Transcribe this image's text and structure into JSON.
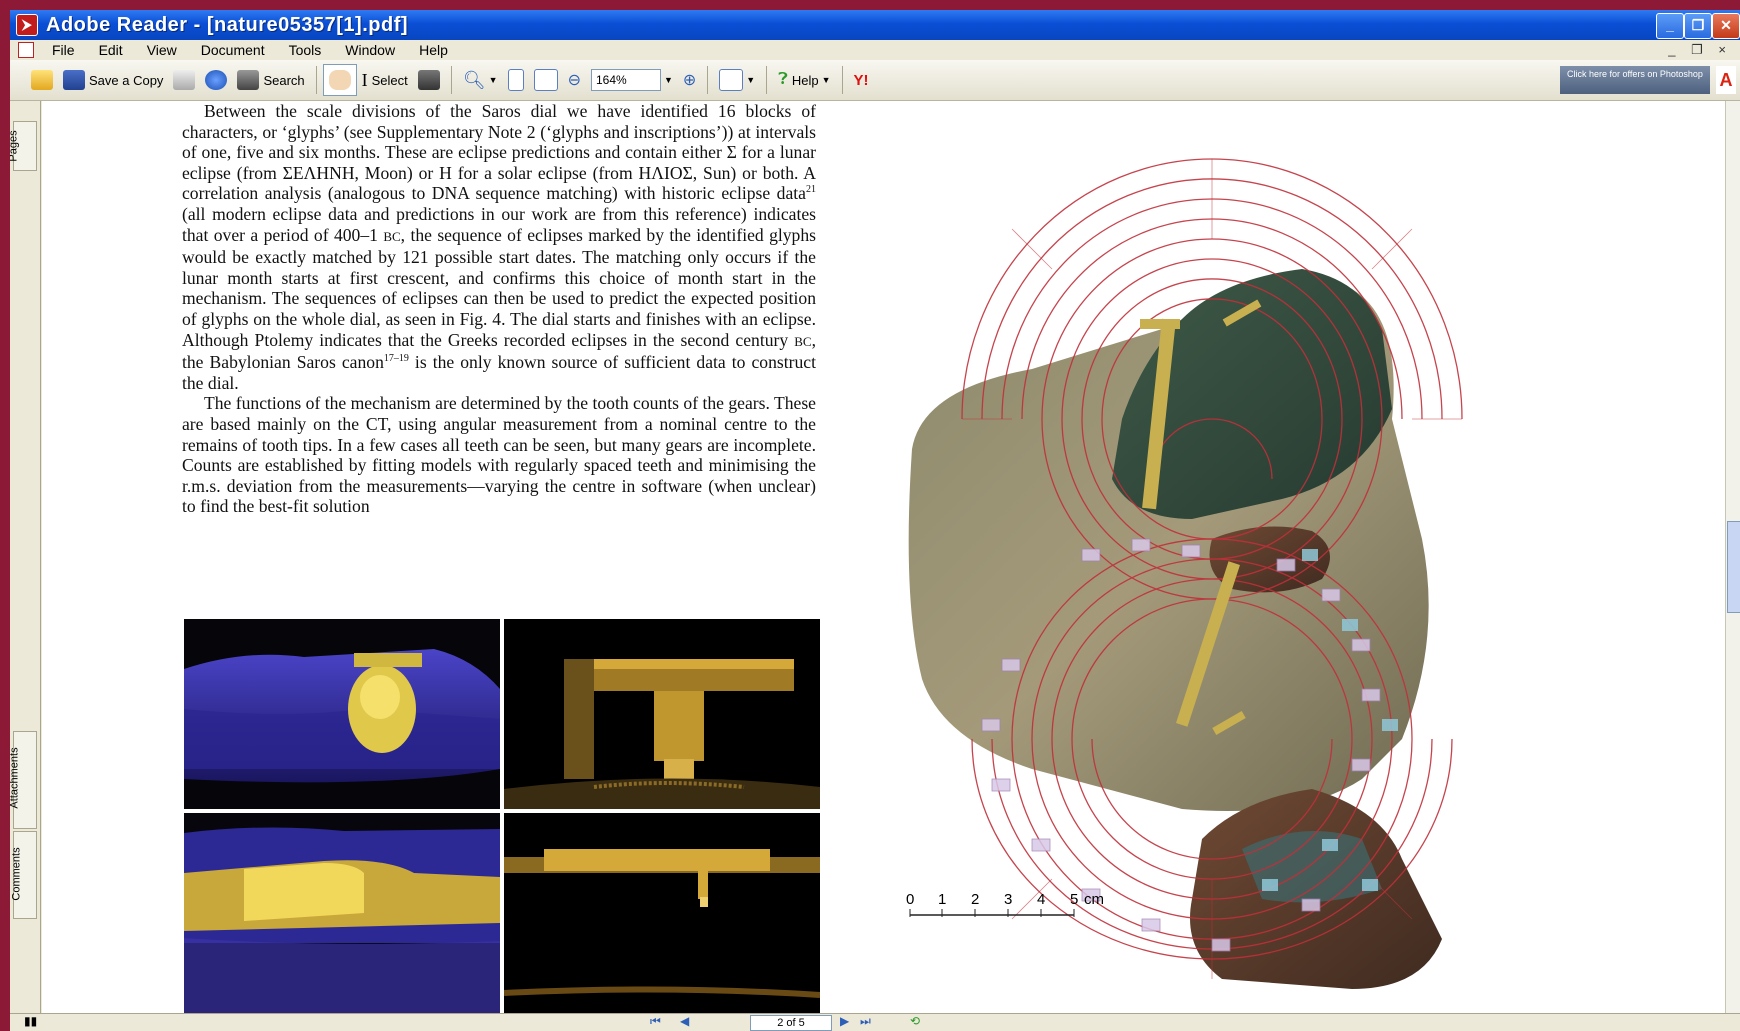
{
  "window": {
    "title": "Adobe Reader - [nature05357[1].pdf]",
    "controls": {
      "minimize": "_",
      "maximize": "❐",
      "close": "✕"
    }
  },
  "menu": {
    "items": [
      "File",
      "Edit",
      "View",
      "Document",
      "Tools",
      "Window",
      "Help"
    ],
    "right_controls": "_ ❐ ×"
  },
  "toolbar": {
    "save_copy": "Save a Copy",
    "search": "Search",
    "select": "Select",
    "zoom": "164%",
    "help": "Help",
    "yahoo": "Y!",
    "ad_text": "Click here for offers on Photoshop"
  },
  "nav_tabs": {
    "pages": "Pages",
    "attachments": "Attachments",
    "comments": "Comments"
  },
  "article": {
    "p1": [
      "Between the scale divisions of the Saros dial we have identified 16 blocks of characters, or ‘glyphs’ (see Supplementary Note 2 (‘glyphs and inscriptions’)) at intervals of one, five and six months. These are eclipse predictions and contain either Σ for a lunar eclipse (from ΣΕΛΗΝΗ, Moon) or Η for a solar eclipse (from ΗΛΙΟΣ, Sun) or both. A correlation analysis (analogous to DNA sequence matching) with historic eclipse data",
      "21",
      " (all modern eclipse data and predictions in our work are from this reference) indicates that over a period of 400–1 ",
      "BC",
      ", the sequence of eclipses marked by the identified glyphs would be exactly matched by 121 possible start dates. The matching only occurs if the lunar month starts at first crescent, and confirms this choice of month start in the mechanism. The sequences of eclipses can then be used to predict the expected position of glyphs on the whole dial, as seen in Fig. 4. The dial starts and finishes with an eclipse. Although Ptolemy indicates that the Greeks recorded eclipses in the second century ",
      "BC",
      ", the Babylonian Saros canon",
      "17–19",
      " is the only known source of sufficient data to construct the dial."
    ],
    "p2": "The functions of the mechanism are determined by the tooth counts of the gears. These are based mainly on the CT, using angular measurement from a nominal centre to the remains of tooth tips. In a few cases all teeth can be seen, but many gears are incomplete. Counts are established by fitting models with regularly spaced teeth and minimising the r.m.s. deviation from the measurements—varying the centre in software (when unclear) to find the best-fit solution"
  },
  "scale_bar": {
    "ticks": [
      "0",
      "1",
      "2",
      "3",
      "4",
      "5"
    ],
    "unit": "cm"
  },
  "status": {
    "page": "2 of 5"
  },
  "colors": {
    "titlebar": "#0a4fd6",
    "border": "#8c1a36",
    "dial_red": "#c0303a"
  }
}
